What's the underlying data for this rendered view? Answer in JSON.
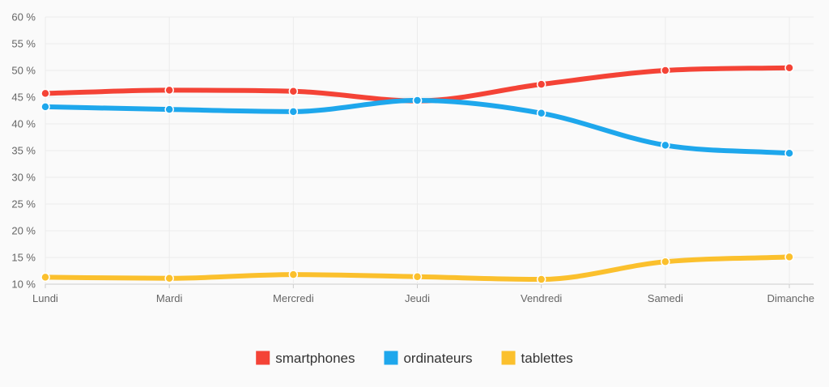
{
  "chart_data": {
    "type": "line",
    "curve": "smooth",
    "categories": [
      "Lundi",
      "Mardi",
      "Mercredi",
      "Jeudi",
      "Vendredi",
      "Samedi",
      "Dimanche"
    ],
    "y_ticks": [
      10,
      15,
      20,
      25,
      30,
      35,
      40,
      45,
      50,
      55,
      60
    ],
    "y_tick_suffix": " %",
    "ylim": [
      10,
      60
    ],
    "grid": true,
    "legend_position": "bottom-center",
    "series": [
      {
        "name": "smartphones",
        "color": "#f44336",
        "values": [
          45.7,
          46.3,
          46.1,
          44.3,
          47.4,
          50.0,
          50.5
        ]
      },
      {
        "name": "ordinateurs",
        "color": "#1ea7ec",
        "values": [
          43.2,
          42.7,
          42.3,
          44.4,
          42.0,
          36.0,
          34.5
        ]
      },
      {
        "name": "tablettes",
        "color": "#fbc02d",
        "values": [
          11.3,
          11.1,
          11.8,
          11.4,
          10.9,
          14.2,
          15.1
        ]
      }
    ]
  }
}
